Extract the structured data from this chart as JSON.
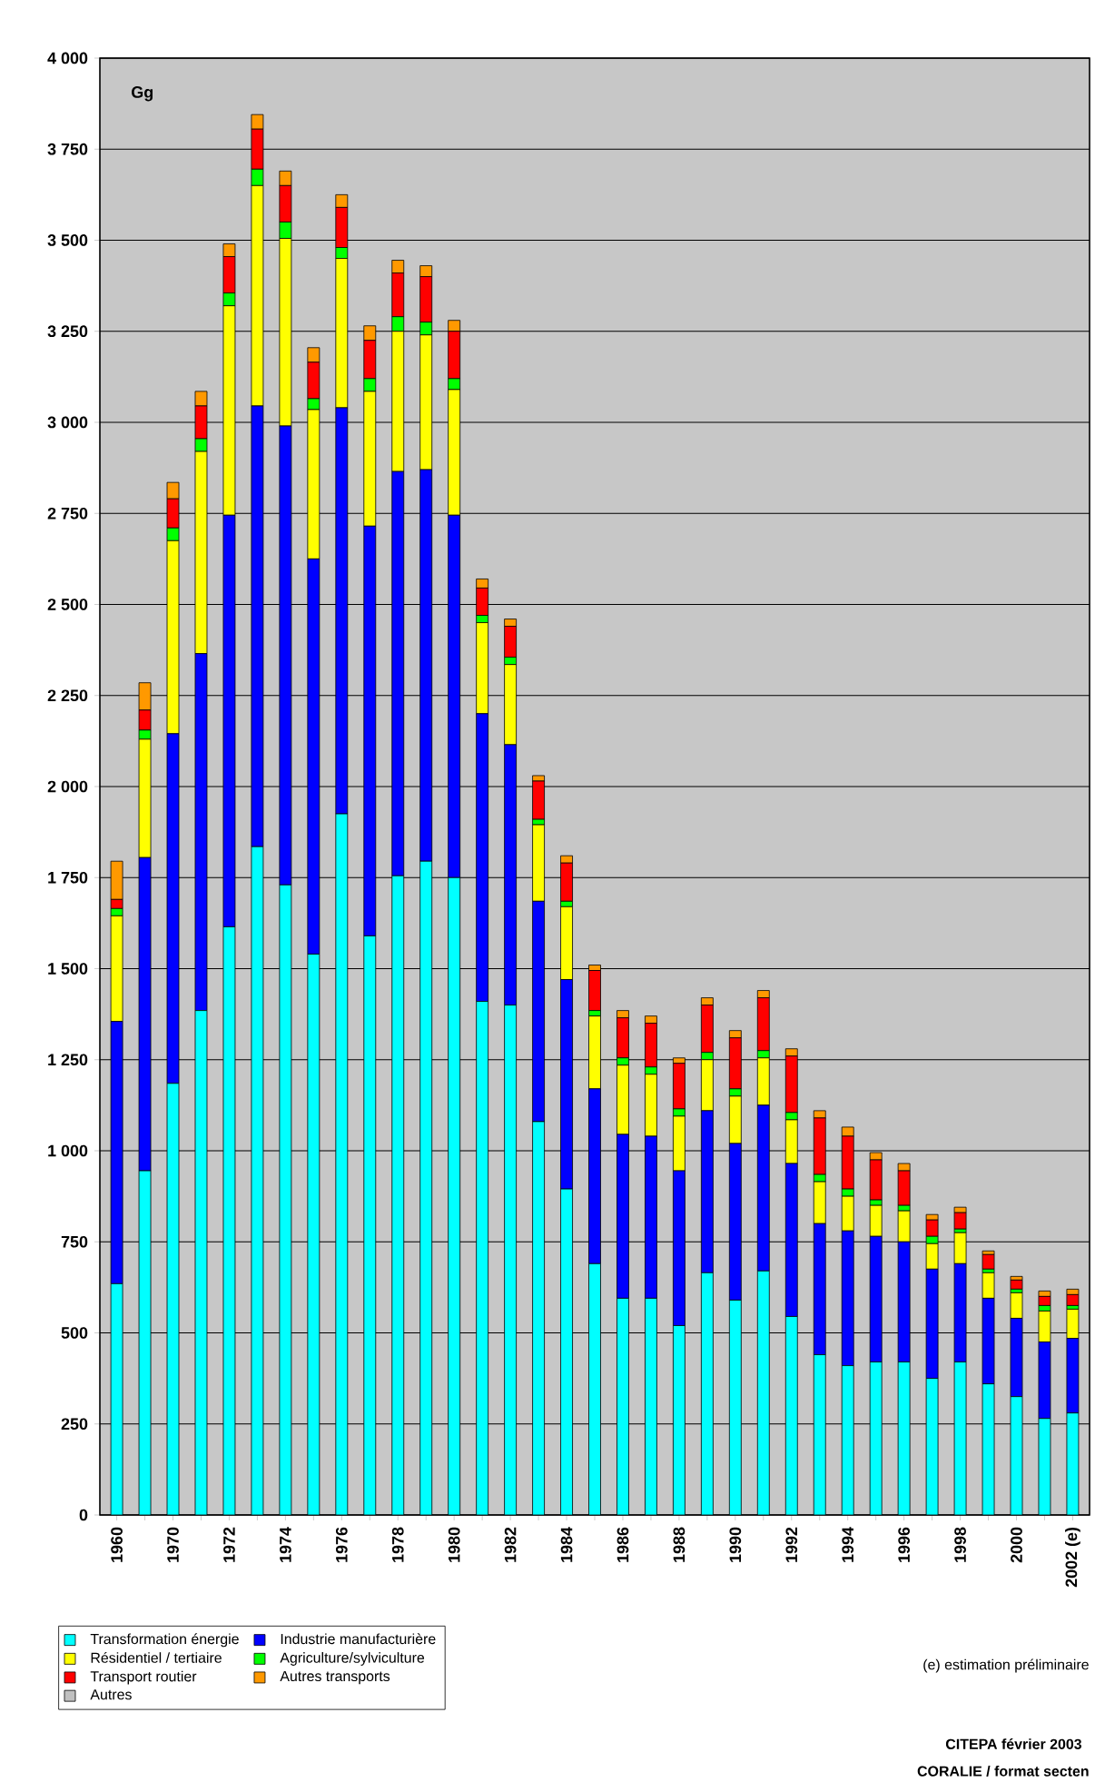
{
  "chart_data": {
    "type": "bar",
    "stacked": true,
    "ylabel": "Gg",
    "categories": [
      "1960",
      null,
      "1970",
      null,
      "1972",
      null,
      "1974",
      null,
      "1976",
      null,
      "1978",
      null,
      "1980",
      null,
      "1982",
      null,
      "1984",
      null,
      "1986",
      null,
      "1988",
      null,
      "1990",
      null,
      "1992",
      null,
      "1994",
      null,
      "1996",
      null,
      "1998",
      null,
      "2000",
      null,
      "2002 (e)"
    ],
    "series": [
      {
        "name": "Transformation énergie",
        "color": "#00ffff",
        "values": [
          635,
          945,
          1185,
          1385,
          1615,
          1835,
          1730,
          1540,
          1925,
          1590,
          1755,
          1795,
          1750,
          1410,
          1400,
          1080,
          895,
          690,
          595,
          595,
          520,
          665,
          590,
          670,
          545,
          440,
          410,
          420,
          420,
          375,
          420,
          360,
          325,
          265,
          280
        ]
      },
      {
        "name": "Industrie manufacturière",
        "color": "#0000ff",
        "values": [
          720,
          860,
          960,
          980,
          1130,
          1210,
          1260,
          1085,
          1115,
          1125,
          1110,
          1075,
          995,
          790,
          715,
          605,
          575,
          480,
          450,
          445,
          425,
          445,
          430,
          455,
          420,
          360,
          370,
          345,
          330,
          300,
          270,
          235,
          215,
          210,
          205
        ]
      },
      {
        "name": "Résidentiel / tertiaire",
        "color": "#ffff00",
        "values": [
          290,
          325,
          530,
          555,
          575,
          605,
          515,
          410,
          410,
          370,
          385,
          370,
          345,
          250,
          220,
          210,
          200,
          200,
          190,
          170,
          150,
          140,
          130,
          130,
          120,
          115,
          95,
          85,
          85,
          70,
          85,
          70,
          70,
          85,
          80
        ]
      },
      {
        "name": "Agriculture/sylviculture",
        "color": "#00ff00",
        "values": [
          20,
          25,
          35,
          35,
          35,
          45,
          45,
          30,
          30,
          35,
          40,
          35,
          30,
          20,
          20,
          15,
          15,
          15,
          20,
          20,
          20,
          20,
          20,
          20,
          20,
          20,
          20,
          15,
          15,
          20,
          10,
          10,
          10,
          15,
          10
        ]
      },
      {
        "name": "Transport routier",
        "color": "#ff0000",
        "values": [
          25,
          55,
          80,
          90,
          100,
          110,
          100,
          100,
          110,
          105,
          120,
          125,
          130,
          75,
          85,
          105,
          105,
          110,
          110,
          120,
          125,
          130,
          140,
          145,
          155,
          155,
          145,
          110,
          95,
          45,
          45,
          40,
          25,
          25,
          30
        ]
      },
      {
        "name": "Autres transports",
        "color": "#ff9900",
        "values": [
          105,
          75,
          45,
          40,
          35,
          40,
          40,
          40,
          35,
          40,
          35,
          30,
          30,
          25,
          20,
          15,
          20,
          15,
          20,
          20,
          15,
          20,
          20,
          20,
          20,
          20,
          25,
          20,
          20,
          15,
          15,
          10,
          10,
          15,
          15
        ]
      },
      {
        "name": "Autres",
        "color": "#c0c0c0",
        "values": [
          null,
          null,
          null,
          null,
          null,
          null,
          null,
          null,
          null,
          null,
          null,
          null,
          null,
          null,
          null,
          null,
          null,
          null,
          null,
          null,
          null,
          null,
          null,
          null,
          null,
          null,
          null,
          null,
          null,
          null,
          null,
          null,
          null,
          null,
          null
        ]
      }
    ],
    "ylim": [
      0,
      4000
    ],
    "yticks": [
      {
        "value": 0,
        "label": "0"
      },
      {
        "value": 250,
        "label": "250"
      },
      {
        "value": 500,
        "label": "500"
      },
      {
        "value": 750,
        "label": "750"
      },
      {
        "value": 1000,
        "label": "1 000"
      },
      {
        "value": 1250,
        "label": "1 250"
      },
      {
        "value": 1500,
        "label": "1 500"
      },
      {
        "value": 1750,
        "label": "1 750"
      },
      {
        "value": 2000,
        "label": "2 000"
      },
      {
        "value": 2250,
        "label": "2 250"
      },
      {
        "value": 2500,
        "label": "2 500"
      },
      {
        "value": 2750,
        "label": "2 750"
      },
      {
        "value": 3000,
        "label": "3 000"
      },
      {
        "value": 3250,
        "label": "3 250"
      },
      {
        "value": 3500,
        "label": "3 500"
      },
      {
        "value": 3750,
        "label": "3 750"
      },
      {
        "value": 4000,
        "label": "4 000"
      }
    ],
    "grid": "y",
    "legend": "bottom left",
    "annotations": [
      "(e) estimation préliminaire",
      "CITEPA février 2003",
      "CORALIE / format secten"
    ]
  }
}
